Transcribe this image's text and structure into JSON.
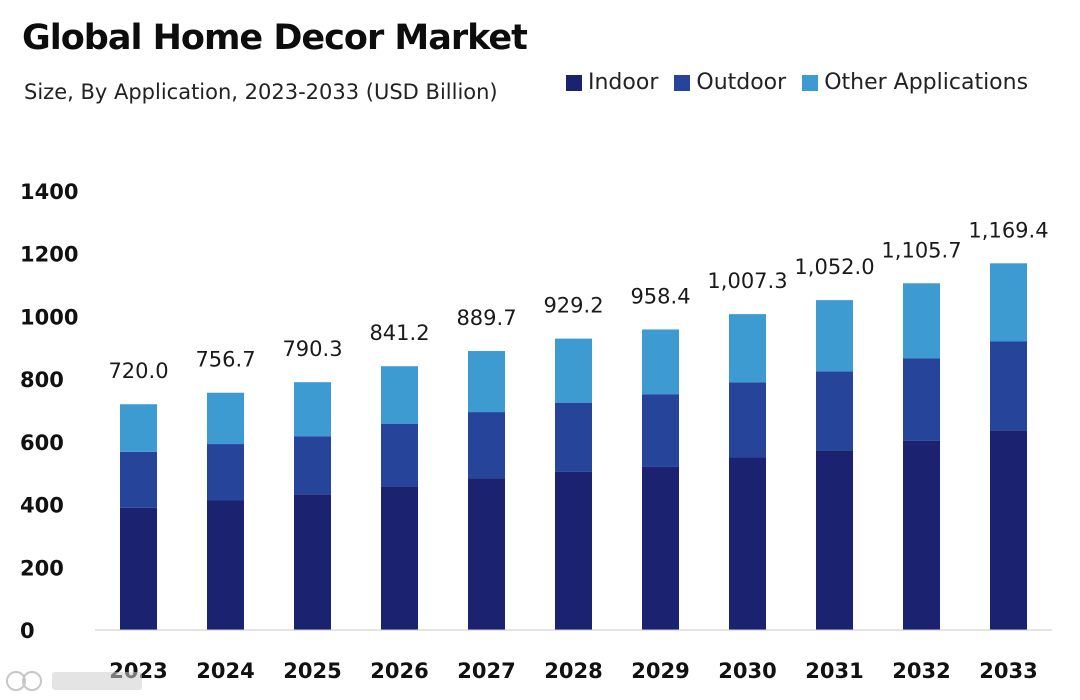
{
  "header": {
    "title": "Global Home Decor Market",
    "subtitle": "Size, By Application, 2023-2033 (USD Billion)"
  },
  "legend": {
    "items": [
      {
        "label": "Indoor",
        "color": "#1b2370"
      },
      {
        "label": "Outdoor",
        "color": "#25449a"
      },
      {
        "label": "Other Applications",
        "color": "#3d9bd1"
      }
    ],
    "placement": "top-right"
  },
  "chart_data": {
    "type": "bar",
    "stacked": true,
    "title": "Global Home Decor Market",
    "subtitle": "Size, By Application, 2023-2033 (USD Billion)",
    "xlabel": "",
    "ylabel": "",
    "ylim": [
      0,
      1400
    ],
    "yticks": [
      0,
      200,
      400,
      600,
      800,
      1000,
      1200,
      1400
    ],
    "grid": false,
    "legend_placement": "top-right",
    "categories": [
      "2023",
      "2024",
      "2025",
      "2026",
      "2027",
      "2028",
      "2029",
      "2030",
      "2031",
      "2032",
      "2033"
    ],
    "series": [
      {
        "name": "Indoor",
        "color": "#1b2370",
        "values": [
          390,
          413,
          433,
          458,
          483,
          505,
          520,
          550,
          573,
          603,
          637
        ]
      },
      {
        "name": "Outdoor",
        "color": "#25449a",
        "values": [
          178,
          180,
          185,
          200,
          212,
          220,
          232,
          240,
          252,
          263,
          283
        ]
      },
      {
        "name": "Other Applications",
        "color": "#3d9bd1",
        "values": [
          152,
          163.7,
          172.3,
          183.2,
          194.7,
          204.2,
          206.4,
          217.3,
          227,
          239.7,
          249.4
        ]
      }
    ],
    "totals": [
      720.0,
      756.7,
      790.3,
      841.2,
      889.7,
      929.2,
      958.4,
      1007.3,
      1052.0,
      1105.7,
      1169.4
    ],
    "total_labels": [
      "720.0",
      "756.7",
      "790.3",
      "841.2",
      "889.7",
      "929.2",
      "958.4",
      "1,007.3",
      "1,052.0",
      "1,105.7",
      "1,169.4"
    ]
  }
}
